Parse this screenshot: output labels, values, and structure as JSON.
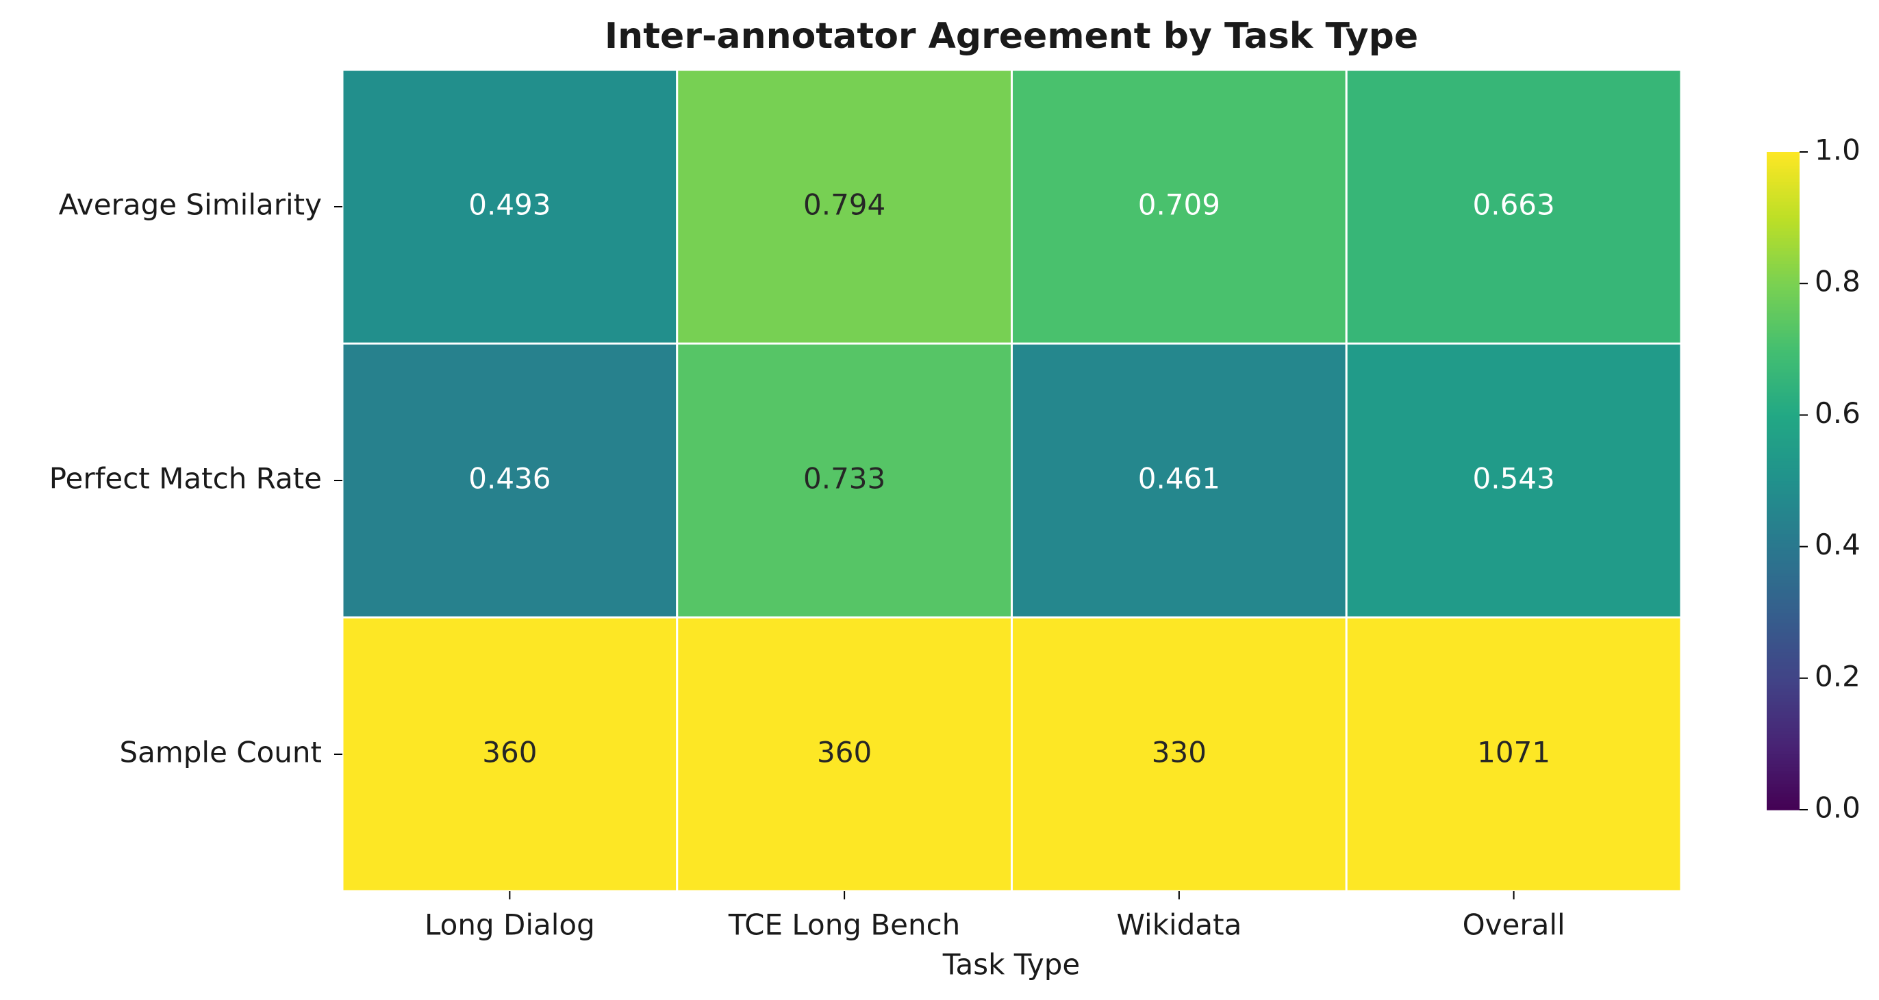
{
  "chart_data": {
    "type": "heatmap",
    "title": "Inter-annotator Agreement by Task Type",
    "xlabel": "Task Type",
    "categories": [
      "Long Dialog",
      "TCE Long Bench",
      "Wikidata",
      "Overall"
    ],
    "rows": [
      "Average Similarity",
      "Perfect Match Rate",
      "Sample Count"
    ],
    "values": [
      [
        0.493,
        0.794,
        0.709,
        0.663
      ],
      [
        0.436,
        0.733,
        0.461,
        0.543
      ],
      [
        360,
        360,
        330,
        1071
      ]
    ],
    "colormap": "viridis",
    "clim": [
      0,
      1
    ],
    "cticks": [
      {
        "value": 0,
        "label": "0.0"
      },
      0.2,
      0.4,
      0.6,
      0.8,
      {
        "value": 1,
        "label": "1.0"
      }
    ]
  }
}
